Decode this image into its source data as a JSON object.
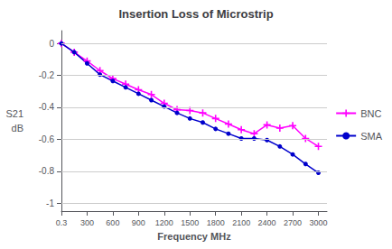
{
  "chart_data": {
    "type": "line",
    "title": "Insertion Loss of Microstrip",
    "xlabel": "Frequency MHz",
    "ylabel": [
      "S21",
      "dB"
    ],
    "xlim": [
      0.3,
      3100
    ],
    "ylim": [
      -1.05,
      0.08
    ],
    "xticks": [
      0.3,
      300,
      600,
      900,
      1200,
      1500,
      1800,
      2100,
      2400,
      2700,
      3000
    ],
    "yticks": [
      0,
      -0.2,
      -0.4,
      -0.6,
      -0.8,
      -1
    ],
    "grid": true,
    "legend": "right",
    "x": [
      0.3,
      150,
      300,
      450,
      600,
      750,
      900,
      1050,
      1200,
      1350,
      1500,
      1650,
      1800,
      1950,
      2100,
      2250,
      2400,
      2550,
      2700,
      2850,
      3000
    ],
    "series": [
      {
        "name": "BNC",
        "color": "#ff00ff",
        "marker": "plus",
        "values": [
          0.0,
          -0.055,
          -0.11,
          -0.17,
          -0.22,
          -0.255,
          -0.29,
          -0.32,
          -0.375,
          -0.415,
          -0.42,
          -0.435,
          -0.47,
          -0.505,
          -0.54,
          -0.565,
          -0.51,
          -0.53,
          -0.515,
          -0.595,
          -0.645
        ]
      },
      {
        "name": "SMA",
        "color": "#0000cc",
        "marker": "dot",
        "values": [
          0.0,
          -0.055,
          -0.125,
          -0.195,
          -0.235,
          -0.275,
          -0.315,
          -0.355,
          -0.395,
          -0.435,
          -0.47,
          -0.495,
          -0.535,
          -0.565,
          -0.595,
          -0.595,
          -0.605,
          -0.645,
          -0.695,
          -0.755,
          -0.81
        ]
      }
    ]
  }
}
